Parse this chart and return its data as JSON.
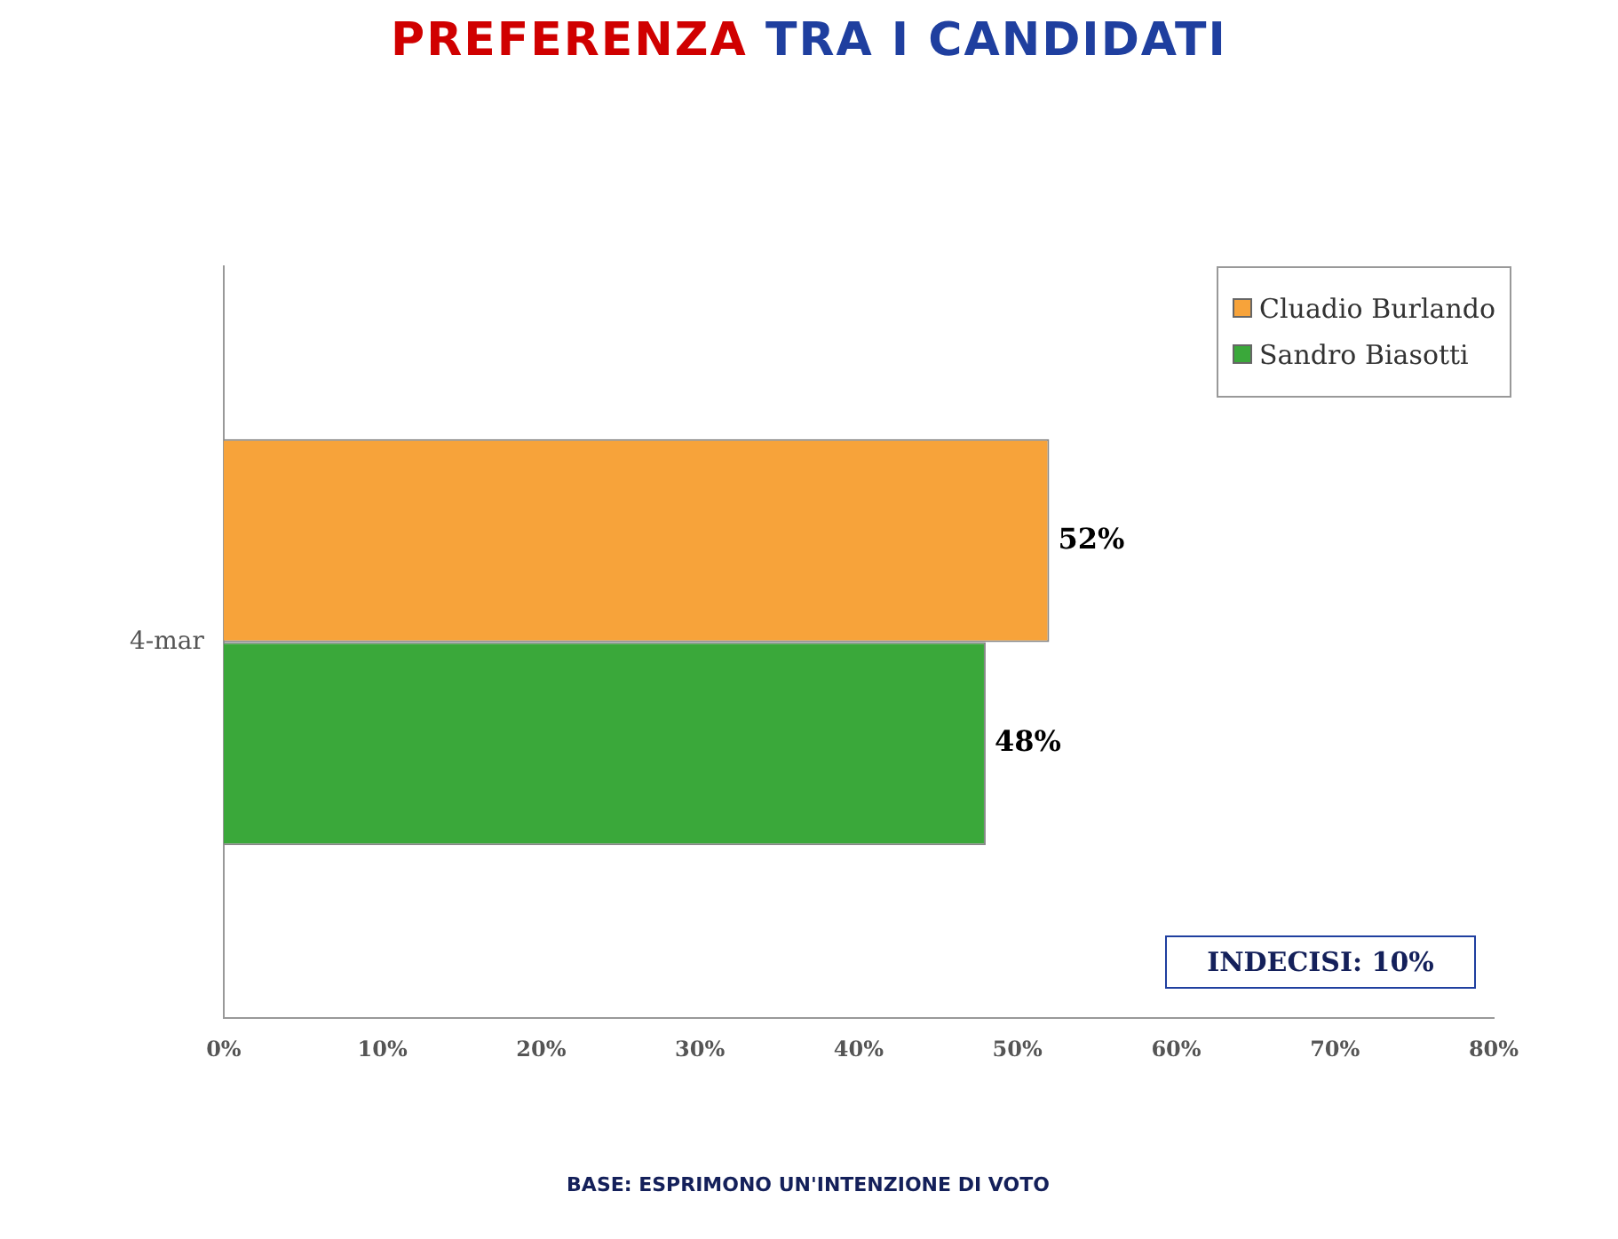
{
  "chart_data": {
    "type": "bar",
    "orientation": "horizontal",
    "title": "PREFERENZA TRA I CANDIDATI",
    "categories": [
      "4-mar"
    ],
    "series": [
      {
        "name": "Cluadio Burlando",
        "color": "#f7a33a",
        "values": [
          52
        ],
        "value_labels": [
          "52%"
        ]
      },
      {
        "name": "Sandro Biasotti",
        "color": "#3aa83a",
        "values": [
          48
        ],
        "value_labels": [
          "48%"
        ]
      }
    ],
    "xlim": [
      0,
      80
    ],
    "xticks": [
      {
        "value": 0,
        "label": "0%"
      },
      {
        "value": 10,
        "label": "10%"
      },
      {
        "value": 20,
        "label": "20%"
      },
      {
        "value": 30,
        "label": "30%"
      },
      {
        "value": 40,
        "label": "40%"
      },
      {
        "value": 50,
        "label": "50%"
      },
      {
        "value": 60,
        "label": "60%"
      },
      {
        "value": 70,
        "label": "70%"
      },
      {
        "value": 80,
        "label": "80%"
      }
    ],
    "grid": false,
    "legend": "top right",
    "annotations": [
      "INDECISI: 10%",
      "BASE: ESPRIMONO UN'INTENZIONE DI VOTO"
    ]
  }
}
